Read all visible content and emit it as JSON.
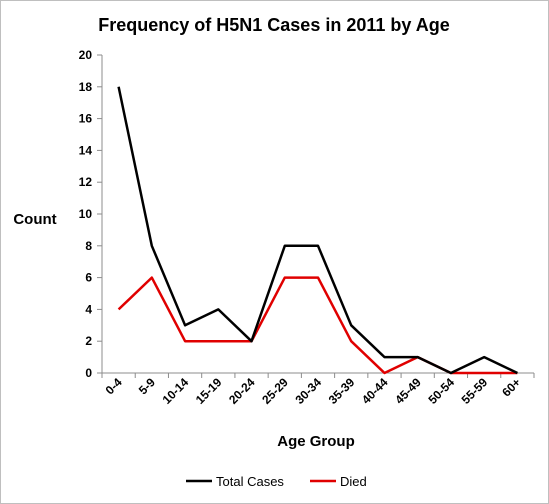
{
  "chart_data": {
    "type": "line",
    "title": "Frequency of H5N1 Cases in 2011 by Age",
    "xlabel": "Age Group",
    "ylabel": "Count",
    "ylim": [
      0,
      20
    ],
    "ytick_step": 2,
    "grid": false,
    "legend_position": "bottom",
    "categories": [
      "0-4",
      "5-9",
      "10-14",
      "15-19",
      "20-24",
      "25-29",
      "30-34",
      "35-39",
      "40-44",
      "45-49",
      "50-54",
      "55-59",
      "60+"
    ],
    "series": [
      {
        "name": "Total Cases",
        "color": "#000000",
        "values": [
          18,
          8,
          3,
          4,
          2,
          8,
          8,
          3,
          1,
          1,
          0,
          1,
          0
        ]
      },
      {
        "name": "Died",
        "color": "#e00000",
        "values": [
          4,
          6,
          2,
          2,
          2,
          6,
          6,
          2,
          0,
          1,
          0,
          0,
          0
        ]
      }
    ]
  }
}
